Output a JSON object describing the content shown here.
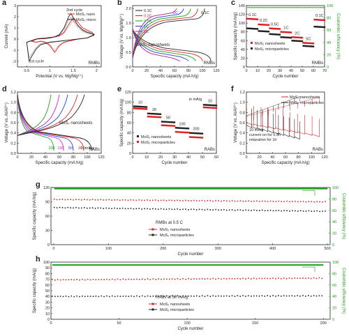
{
  "chart_data": [
    {
      "id": "a",
      "panel_letter": "a",
      "type": "line",
      "xlabel": "Potential (V vs. Mg/Mg²⁺)",
      "ylabel": "Current (mA)",
      "xlim": [
        0.3,
        2.1
      ],
      "ylim": [
        -2.5,
        3.0
      ],
      "xticks": [
        0.5,
        1.0,
        1.5,
        2.0
      ],
      "yticks": [
        -2,
        -1,
        0,
        1,
        2,
        3
      ],
      "tag": "RMBs",
      "legend": [
        "MoS₂ nano",
        "MoS₂ micro"
      ],
      "annotations": [
        "2nd cycle",
        "1st cycle"
      ],
      "series": [
        {
          "name": "MoS₂ nano",
          "color": "#e02020",
          "x": [
            0.6,
            0.75,
            0.9,
            1.0,
            1.1,
            1.2,
            1.3,
            1.4,
            1.5,
            1.6,
            1.7,
            1.8,
            1.9,
            1.95,
            1.8,
            1.6,
            1.5,
            1.4,
            1.3,
            1.2,
            1.1,
            1.0,
            0.9,
            0.8,
            0.7,
            0.6
          ],
          "y": [
            -0.2,
            0.05,
            0.1,
            0.15,
            0.2,
            0.3,
            0.6,
            1.3,
            1.9,
            1.5,
            1.0,
            0.8,
            0.6,
            0.4,
            0.1,
            0.0,
            -0.1,
            -0.2,
            -0.3,
            -0.6,
            -1.2,
            -0.6,
            -0.3,
            -0.2,
            -0.3,
            -0.2
          ]
        },
        {
          "name": "MoS₂ micro",
          "color": "#222222",
          "x": [
            0.5,
            0.7,
            0.9,
            1.0,
            1.1,
            1.2,
            1.3,
            1.4,
            1.45,
            1.5,
            1.6,
            1.7,
            1.8,
            1.9,
            1.95,
            1.8,
            1.6,
            1.4,
            1.2,
            1.0,
            0.9,
            0.8,
            0.7,
            0.6,
            0.55,
            0.5
          ],
          "y": [
            -0.3,
            0.0,
            0.05,
            0.1,
            0.2,
            0.4,
            1.0,
            2.0,
            2.3,
            1.9,
            1.2,
            0.8,
            0.6,
            0.5,
            0.4,
            0.1,
            0.0,
            -0.1,
            -0.2,
            -0.3,
            -0.4,
            -0.5,
            -0.9,
            -1.6,
            -2.0,
            -0.3
          ]
        }
      ]
    },
    {
      "id": "b",
      "panel_letter": "b",
      "type": "line",
      "xlabel": "Specific capacity (mA h/g)",
      "ylabel": "Voltage (V vs. Mg/Mg²⁺)",
      "xlim": [
        0,
        120
      ],
      "ylim": [
        0.0,
        2.1
      ],
      "xticks": [
        0,
        20,
        40,
        60,
        80,
        100,
        120
      ],
      "yticks": [
        0.0,
        0.5,
        1.0,
        1.5,
        2.0
      ],
      "tag": "RMBs",
      "text_label": "MoS₂ nanosheets",
      "annotations": [
        "2C",
        "0.1C"
      ],
      "legend": [
        "0.1C",
        "0.2C",
        "0.5C",
        "1C",
        "2C"
      ],
      "series": [
        {
          "name": "0.1C",
          "color": "#222222",
          "charge_end": 103,
          "charge_plateau": 1.55,
          "discharge_end": 112,
          "discharge_plateau": 0.5
        },
        {
          "name": "0.2C",
          "color": "#e02020",
          "charge_end": 93,
          "charge_plateau": 1.6,
          "discharge_end": 100,
          "discharge_plateau": 0.45
        },
        {
          "name": "0.5C",
          "color": "#1aa01a",
          "charge_end": 83,
          "charge_plateau": 1.65,
          "discharge_end": 90,
          "discharge_plateau": 0.4
        },
        {
          "name": "1C",
          "color": "#1f3fd6",
          "charge_end": 73,
          "charge_plateau": 1.7,
          "discharge_end": 80,
          "discharge_plateau": 0.35
        },
        {
          "name": "2C",
          "color": "#b0208a",
          "charge_end": 63,
          "charge_plateau": 1.75,
          "discharge_end": 68,
          "discharge_plateau": 0.3
        }
      ]
    },
    {
      "id": "c",
      "panel_letter": "c",
      "type": "scatter",
      "xlabel": "Cycle number",
      "ylabel": "Specific capacity (mA h/g)",
      "ylabel_right": "Coulombic efficiency (%)",
      "xlim": [
        0,
        70
      ],
      "ylim": [
        0,
        140
      ],
      "xticks": [
        0,
        10,
        20,
        30,
        40,
        50,
        60,
        70
      ],
      "yticks": [
        0,
        20,
        40,
        60,
        80,
        100,
        120,
        140
      ],
      "ylim_right": [
        0,
        100
      ],
      "yticks_right": [
        0,
        20,
        40,
        60,
        80,
        100
      ],
      "tag": "RMBs",
      "rate_labels": [
        "0.1C",
        "0.2C",
        "0.5C",
        "1C",
        "2C",
        "5C",
        "0.1C"
      ],
      "legend": [
        "MoS₂ nanosheets",
        "MoS₂ microparticles"
      ],
      "series": [
        {
          "name": "MoS₂ nanosheets",
          "color": "#e02020",
          "steps": [
            [
              1,
              10,
              110
            ],
            [
              11,
              20,
              97
            ],
            [
              21,
              30,
              88
            ],
            [
              31,
              40,
              80
            ],
            [
              41,
              50,
              68
            ],
            [
              51,
              60,
              55
            ],
            [
              61,
              70,
              108
            ]
          ]
        },
        {
          "name": "MoS₂ microparticles",
          "color": "#222222",
          "steps": [
            [
              1,
              10,
              88
            ],
            [
              11,
              20,
              82
            ],
            [
              21,
              30,
              75
            ],
            [
              31,
              40,
              68
            ],
            [
              41,
              50,
              60
            ],
            [
              51,
              60,
              48
            ],
            [
              61,
              70,
              92
            ]
          ]
        }
      ],
      "efficiency": {
        "color": "#1aa01a",
        "value": 97
      }
    },
    {
      "id": "d",
      "panel_letter": "d",
      "type": "line",
      "xlabel": "Specific capacity (mA h/g)",
      "ylabel": "Voltage (V vs. Al/Al³⁺)",
      "xlim": [
        0,
        120
      ],
      "ylim": [
        0.0,
        1.2
      ],
      "xticks": [
        0,
        20,
        40,
        60,
        80,
        100,
        120
      ],
      "yticks": [
        0.0,
        0.2,
        0.4,
        0.6,
        0.8,
        1.0,
        1.2
      ],
      "tag": "RABs",
      "text_label": "MoS₂ nanosheets",
      "rate_labels": [
        "200",
        "100",
        "50",
        "20",
        "10mA/g"
      ],
      "series": [
        {
          "name": "200",
          "color": "#1aa01a",
          "charge_end": 48,
          "discharge_end": 52
        },
        {
          "name": "100",
          "color": "#d020d0",
          "charge_end": 60,
          "discharge_end": 66
        },
        {
          "name": "50",
          "color": "#1f3fd6",
          "charge_end": 72,
          "discharge_end": 80
        },
        {
          "name": "20",
          "color": "#e02020",
          "charge_end": 86,
          "discharge_end": 95
        },
        {
          "name": "10mA/g",
          "color": "#222222",
          "charge_end": 96,
          "discharge_end": 106
        }
      ]
    },
    {
      "id": "e",
      "panel_letter": "e",
      "type": "scatter",
      "xlabel": "Cycle number",
      "ylabel": "Specific capacity (mA h/g)",
      "xlim": [
        0,
        60
      ],
      "ylim": [
        0,
        120
      ],
      "xticks": [
        0,
        10,
        20,
        30,
        40,
        50,
        60
      ],
      "yticks": [
        0,
        20,
        40,
        60,
        80,
        100,
        120
      ],
      "tag": "RABs",
      "unit_note": "in mA/g",
      "rate_labels": [
        "10",
        "20",
        "50",
        "100",
        "200",
        "10"
      ],
      "legend": [
        "MoS₂ nanosheets",
        "MoS₂ microparticles"
      ],
      "series": [
        {
          "name": "MoS₂ nanosheets",
          "color": "#222222",
          "steps": [
            [
              1,
              10,
              92
            ],
            [
              11,
              20,
              78
            ],
            [
              21,
              30,
              62
            ],
            [
              31,
              40,
              50
            ],
            [
              41,
              50,
              40
            ],
            [
              51,
              60,
              95
            ]
          ]
        },
        {
          "name": "MoS₂ microparticles",
          "color": "#e02020",
          "steps": [
            [
              1,
              10,
              88
            ],
            [
              11,
              20,
              72
            ],
            [
              21,
              30,
              55
            ],
            [
              31,
              40,
              42
            ],
            [
              41,
              50,
              32
            ],
            [
              51,
              60,
              90
            ]
          ]
        }
      ]
    },
    {
      "id": "f",
      "panel_letter": "f",
      "type": "line",
      "xlabel": "Specific capacity (mA h/g)",
      "ylabel": "Voltage (V vs. Al/Al³⁺)",
      "xlim": [
        0,
        120
      ],
      "ylim": [
        0.0,
        1.2
      ],
      "xticks": [
        0,
        20,
        40,
        60,
        80,
        100,
        120
      ],
      "yticks": [
        0.0,
        0.2,
        0.4,
        0.6,
        0.8,
        1.0,
        1.2
      ],
      "tag": "RABs",
      "legend": [
        "MoS₂ nanosheets",
        "MoS₂ microparticles"
      ],
      "notes": [
        "10 mA/g",
        "current on for 0.5h",
        "relaxation for 1h"
      ],
      "series": [
        {
          "name": "MoS₂ nanosheets",
          "color": "#e02020",
          "end": 112
        },
        {
          "name": "MoS₂ microparticles",
          "color": "#222222",
          "end": 82
        }
      ]
    },
    {
      "id": "g",
      "panel_letter": "g",
      "type": "scatter",
      "xlabel": "Cycle number",
      "ylabel": "Specific capacity (mA h/g)",
      "ylabel_right": "Coulombic efficiency (%)",
      "xlim": [
        -5,
        505
      ],
      "ylim": [
        0,
        120
      ],
      "xticks": [
        0,
        100,
        200,
        300,
        400,
        500
      ],
      "yticks": [
        0,
        30,
        60,
        90,
        120
      ],
      "ylim_right": [
        0,
        100
      ],
      "yticks_right": [
        0,
        20,
        40,
        60,
        80,
        100
      ],
      "note": "RMBs at 0.5 C",
      "legend": [
        "MoS₂ nanosheets",
        "MoS₂ microparticles"
      ],
      "series": [
        {
          "name": "MoS₂ nanosheets",
          "color": "#e02020",
          "start": 95,
          "end": 90
        },
        {
          "name": "MoS₂ microparticles",
          "color": "#222222",
          "start": 78,
          "end": 70
        }
      ],
      "efficiency": {
        "color": "#1aa01a",
        "value": 98
      }
    },
    {
      "id": "h",
      "panel_letter": "h",
      "type": "scatter",
      "xlabel": "Cycle number",
      "ylabel": "Specific capacity (mA/g)",
      "ylabel_right": "Coulombic efficiency (%)",
      "xlim": [
        0,
        205
      ],
      "ylim": [
        0,
        100
      ],
      "xticks": [
        0,
        50,
        100,
        150,
        200
      ],
      "yticks": [
        0,
        10,
        20,
        30,
        40,
        50,
        60,
        70,
        80,
        90,
        100
      ],
      "ylim_right": [
        0,
        100
      ],
      "yticks_right": [
        0,
        20,
        40,
        60,
        80,
        100
      ],
      "note": "RABs at 50 mA/g",
      "legend": [
        "MoS₂ nanosheets",
        "MoS₂ microparticles"
      ],
      "series": [
        {
          "name": "MoS₂ nanosheets",
          "color": "#e02020",
          "start": 69,
          "end": 72
        },
        {
          "name": "MoS₂ microparticles",
          "color": "#222222",
          "start": 40,
          "end": 41
        }
      ],
      "efficiency": {
        "color": "#1aa01a",
        "value": 95
      }
    }
  ]
}
